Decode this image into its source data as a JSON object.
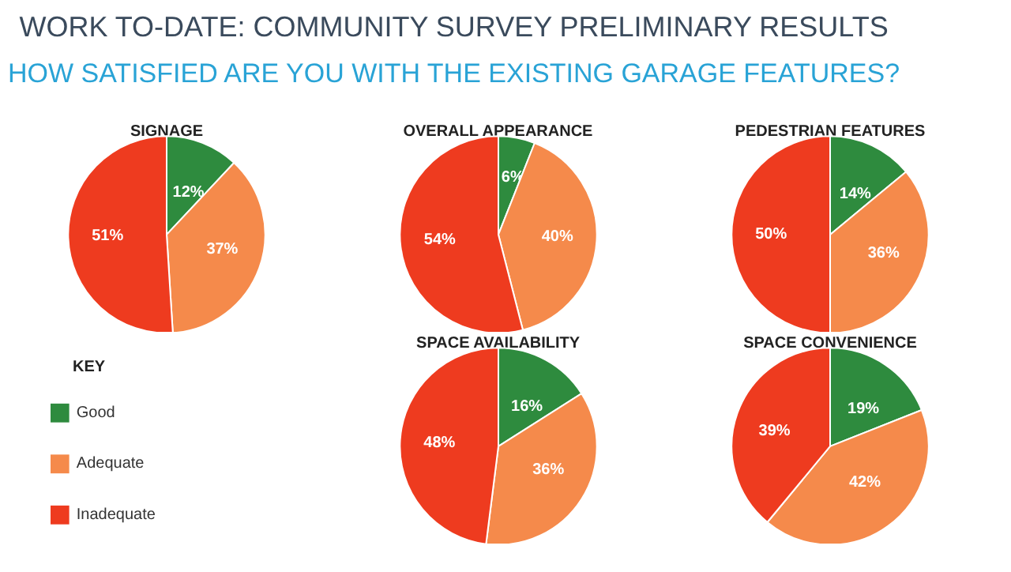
{
  "chart_data": [
    {
      "type": "other",
      "title": "WORK TO-DATE: COMMUNITY SURVEY PRELIMINARY RESULTS",
      "subtitle": "HOW SATISFIED ARE YOU WITH THE EXISTING GARAGE FEATURES?"
    },
    {
      "type": "pie",
      "title": "SIGNAGE",
      "categories": [
        null,
        null,
        null
      ],
      "values": [
        12,
        37,
        51
      ],
      "value_labels": [
        "12%",
        "37%",
        "51%"
      ],
      "colors": [
        "#2e8b3e",
        "#f58a4b",
        "#ee3b1f"
      ]
    },
    {
      "type": "pie",
      "title": "OVERALL APPEARANCE",
      "categories": [
        null,
        null,
        null
      ],
      "values": [
        6,
        40,
        54
      ],
      "value_labels": [
        "6%",
        "40%",
        "54%"
      ],
      "colors": [
        "#2e8b3e",
        "#f58a4b",
        "#ee3b1f"
      ]
    },
    {
      "type": "pie",
      "title": "PEDESTRIAN FEATURES",
      "categories": [
        null,
        null,
        null
      ],
      "values": [
        14,
        36,
        50
      ],
      "value_labels": [
        "14%",
        "36%",
        "50%"
      ],
      "colors": [
        "#2e8b3e",
        "#f58a4b",
        "#ee3b1f"
      ]
    },
    {
      "type": "pie",
      "title": "SPACE AVAILABILITY",
      "categories": [
        "Good",
        "Adequate",
        "Inadequate"
      ],
      "values": [
        16,
        36,
        48
      ],
      "value_labels": [
        "16%",
        "36%",
        "48%"
      ],
      "colors": [
        "#2e8b3e",
        "#f58a4b",
        "#ee3b1f"
      ],
      "legend": "left",
      "legend_title": "KEY"
    },
    {
      "type": "pie",
      "title": "SPACE CONVENIENCE",
      "categories": [
        null,
        null,
        null
      ],
      "values": [
        19,
        42,
        39
      ],
      "value_labels": [
        "19%",
        "42%",
        "39%"
      ],
      "colors": [
        "#2e8b3e",
        "#f58a4b",
        "#ee3b1f"
      ]
    }
  ]
}
